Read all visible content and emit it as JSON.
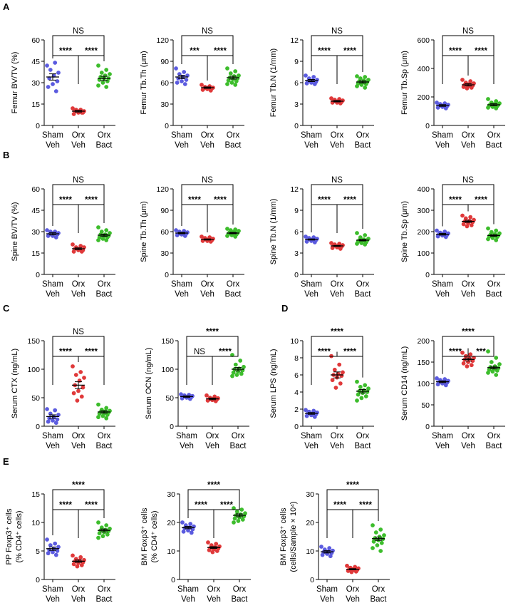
{
  "groups": [
    {
      "line1": "Sham",
      "line2": "Veh"
    },
    {
      "line1": "Orx",
      "line2": "Veh"
    },
    {
      "line1": "Orx",
      "line2": "Bact"
    }
  ],
  "colors": {
    "sham_veh": "#5b5bdf",
    "orx_veh": "#e0393a",
    "orx_bact": "#3dbd2c",
    "axis": "#000000"
  },
  "chart_data": [
    {
      "id": "A1",
      "panel": "A",
      "type": "scatter",
      "ylabel": "Femur BV/TV (%)",
      "ylim": [
        0,
        60
      ],
      "yticks": [
        0,
        15,
        30,
        45,
        60
      ],
      "means": [
        34,
        10,
        33
      ],
      "sems": [
        2.2,
        0.6,
        1.5
      ],
      "points": [
        [
          42,
          44,
          39,
          37,
          35,
          33,
          31,
          29,
          27,
          24
        ],
        [
          12,
          11,
          11,
          10,
          10,
          10,
          9,
          9,
          8,
          9
        ],
        [
          42,
          39,
          37,
          36,
          35,
          34,
          33,
          33,
          32,
          31,
          30,
          28,
          27
        ]
      ],
      "brackets": [
        {
          "from": 0,
          "to": 1,
          "label": "****"
        },
        {
          "from": 1,
          "to": 2,
          "label": "****"
        },
        {
          "from": 0,
          "to": 2,
          "label": "NS"
        }
      ]
    },
    {
      "id": "A2",
      "panel": "A",
      "type": "scatter",
      "ylabel": "Femur Tb.Th (μm)",
      "ylim": [
        0,
        120
      ],
      "yticks": [
        0,
        30,
        60,
        90,
        120
      ],
      "means": [
        68,
        53,
        67
      ],
      "sems": [
        2.5,
        1.0,
        2.0
      ],
      "points": [
        [
          80,
          75,
          72,
          70,
          68,
          66,
          64,
          62,
          60,
          58
        ],
        [
          57,
          55,
          54,
          53,
          53,
          52,
          52,
          51,
          50,
          49
        ],
        [
          80,
          76,
          73,
          70,
          69,
          67,
          66,
          65,
          63,
          62,
          60,
          58,
          57
        ]
      ],
      "brackets": [
        {
          "from": 0,
          "to": 1,
          "label": "***"
        },
        {
          "from": 1,
          "to": 2,
          "label": "****"
        },
        {
          "from": 0,
          "to": 2,
          "label": "NS"
        }
      ]
    },
    {
      "id": "A3",
      "panel": "A",
      "type": "scatter",
      "ylabel": "Femur Tb.N (1/mm)",
      "ylim": [
        0,
        12
      ],
      "yticks": [
        0,
        3,
        6,
        9,
        12
      ],
      "means": [
        6.3,
        3.4,
        6.1
      ],
      "sems": [
        0.15,
        0.1,
        0.15
      ],
      "points": [
        [
          7.0,
          6.8,
          6.6,
          6.4,
          6.3,
          6.2,
          6.1,
          6.0,
          5.9,
          5.8
        ],
        [
          3.8,
          3.7,
          3.6,
          3.5,
          3.4,
          3.4,
          3.3,
          3.2,
          3.2,
          3.1
        ],
        [
          6.9,
          6.8,
          6.6,
          6.4,
          6.3,
          6.2,
          6.1,
          6.0,
          5.9,
          5.8,
          5.7,
          5.5,
          5.3
        ]
      ],
      "brackets": [
        {
          "from": 0,
          "to": 1,
          "label": "****"
        },
        {
          "from": 1,
          "to": 2,
          "label": "****"
        },
        {
          "from": 0,
          "to": 2,
          "label": "NS"
        }
      ]
    },
    {
      "id": "A4",
      "panel": "A",
      "type": "scatter",
      "ylabel": "Femur Tb.Sp (μm)",
      "ylim": [
        0,
        600
      ],
      "yticks": [
        0,
        200,
        400,
        600
      ],
      "means": [
        140,
        285,
        145
      ],
      "sems": [
        6,
        8,
        7
      ],
      "points": [
        [
          160,
          155,
          150,
          145,
          140,
          138,
          135,
          130,
          125,
          120
        ],
        [
          320,
          310,
          300,
          295,
          290,
          285,
          280,
          275,
          270,
          265,
          260
        ],
        [
          185,
          170,
          160,
          155,
          150,
          148,
          145,
          142,
          140,
          135,
          130,
          125,
          120
        ]
      ],
      "brackets": [
        {
          "from": 0,
          "to": 1,
          "label": "****"
        },
        {
          "from": 1,
          "to": 2,
          "label": "****"
        },
        {
          "from": 0,
          "to": 2,
          "label": "NS"
        }
      ]
    },
    {
      "id": "B1",
      "panel": "B",
      "type": "scatter",
      "ylabel": "Spine BV/TV (%)",
      "ylim": [
        0,
        60
      ],
      "yticks": [
        0,
        15,
        30,
        45,
        60
      ],
      "means": [
        28.5,
        18,
        27.5
      ],
      "sems": [
        0.8,
        0.6,
        0.8
      ],
      "points": [
        [
          31,
          30,
          30,
          29,
          29,
          28,
          28,
          27,
          27,
          26
        ],
        [
          21,
          20,
          19,
          19,
          18,
          18,
          17,
          17,
          16,
          16
        ],
        [
          33,
          31,
          30,
          29,
          28,
          28,
          27,
          27,
          26,
          26,
          25,
          24,
          24
        ]
      ],
      "brackets": [
        {
          "from": 0,
          "to": 1,
          "label": "****"
        },
        {
          "from": 1,
          "to": 2,
          "label": "****"
        },
        {
          "from": 0,
          "to": 2,
          "label": "NS"
        }
      ]
    },
    {
      "id": "B2",
      "panel": "B",
      "type": "scatter",
      "ylabel": "Spine Tb.Th (μm)",
      "ylim": [
        0,
        120
      ],
      "yticks": [
        0,
        30,
        60,
        90,
        120
      ],
      "means": [
        58,
        49,
        58
      ],
      "sems": [
        1.0,
        0.8,
        1.0
      ],
      "points": [
        [
          62,
          61,
          60,
          59,
          58,
          57,
          57,
          56,
          55,
          54
        ],
        [
          53,
          52,
          51,
          50,
          49,
          49,
          48,
          47,
          47,
          46
        ],
        [
          64,
          63,
          62,
          61,
          60,
          59,
          58,
          58,
          57,
          56,
          55,
          54,
          53
        ]
      ],
      "brackets": [
        {
          "from": 0,
          "to": 1,
          "label": "****"
        },
        {
          "from": 1,
          "to": 2,
          "label": "****"
        },
        {
          "from": 0,
          "to": 2,
          "label": "NS"
        }
      ]
    },
    {
      "id": "B3",
      "panel": "B",
      "type": "scatter",
      "ylabel": "Spine Tb.N (1/mm)",
      "ylim": [
        0,
        12
      ],
      "yticks": [
        0,
        3,
        6,
        9,
        12
      ],
      "means": [
        4.9,
        4.0,
        4.8
      ],
      "sems": [
        0.08,
        0.07,
        0.1
      ],
      "points": [
        [
          5.3,
          5.2,
          5.1,
          5.0,
          4.9,
          4.9,
          4.8,
          4.7,
          4.6,
          4.5
        ],
        [
          4.4,
          4.3,
          4.2,
          4.1,
          4.0,
          4.0,
          3.9,
          3.8,
          3.7,
          3.6
        ],
        [
          5.8,
          5.5,
          5.2,
          5.0,
          4.9,
          4.8,
          4.8,
          4.7,
          4.6,
          4.5,
          4.4,
          4.3,
          4.2
        ]
      ],
      "brackets": [
        {
          "from": 0,
          "to": 1,
          "label": "****"
        },
        {
          "from": 1,
          "to": 2,
          "label": "****"
        },
        {
          "from": 0,
          "to": 2,
          "label": "NS"
        }
      ]
    },
    {
      "id": "B4",
      "panel": "B",
      "type": "scatter",
      "ylabel": "Spine Tb.Sp (μm)",
      "ylim": [
        0,
        400
      ],
      "yticks": [
        0,
        100,
        200,
        300,
        400
      ],
      "means": [
        188,
        248,
        182
      ],
      "sems": [
        4,
        5,
        4
      ],
      "points": [
        [
          205,
          200,
          195,
          192,
          190,
          188,
          185,
          182,
          178,
          175
        ],
        [
          275,
          268,
          262,
          255,
          250,
          248,
          245,
          240,
          235,
          230,
          225
        ],
        [
          215,
          205,
          198,
          192,
          188,
          185,
          182,
          180,
          178,
          175,
          170,
          165,
          160
        ]
      ],
      "brackets": [
        {
          "from": 0,
          "to": 1,
          "label": "****"
        },
        {
          "from": 1,
          "to": 2,
          "label": "****"
        },
        {
          "from": 0,
          "to": 2,
          "label": "NS"
        }
      ]
    },
    {
      "id": "C1",
      "panel": "C",
      "type": "scatter",
      "ylabel": "Serum CTX (ng/mL)",
      "ylim": [
        0,
        150
      ],
      "yticks": [
        0,
        50,
        100,
        150
      ],
      "means": [
        17,
        72,
        25
      ],
      "sems": [
        3,
        6,
        2
      ],
      "points": [
        [
          30,
          28,
          22,
          20,
          16,
          14,
          12,
          10,
          8,
          6
        ],
        [
          105,
          95,
          90,
          85,
          80,
          72,
          68,
          62,
          58,
          52,
          45
        ],
        [
          38,
          32,
          29,
          27,
          26,
          25,
          24,
          23,
          22,
          20,
          18,
          16,
          14
        ]
      ],
      "brackets": [
        {
          "from": 0,
          "to": 1,
          "label": "****"
        },
        {
          "from": 1,
          "to": 2,
          "label": "****"
        },
        {
          "from": 0,
          "to": 2,
          "label": "NS"
        }
      ]
    },
    {
      "id": "C2",
      "panel": "C",
      "type": "scatter",
      "ylabel": "Serum OCN (ng/mL)",
      "ylim": [
        0,
        150
      ],
      "yticks": [
        0,
        50,
        100,
        150
      ],
      "means": [
        52,
        48,
        100
      ],
      "sems": [
        1.2,
        1.5,
        3
      ],
      "points": [
        [
          56,
          55,
          54,
          53,
          52,
          52,
          51,
          50,
          49,
          48
        ],
        [
          54,
          52,
          50,
          49,
          48,
          47,
          47,
          46,
          45,
          44
        ],
        [
          125,
          115,
          108,
          104,
          101,
          100,
          98,
          96,
          94,
          92,
          90,
          88
        ]
      ],
      "brackets": [
        {
          "from": 0,
          "to": 1,
          "label": "NS"
        },
        {
          "from": 1,
          "to": 2,
          "label": "****"
        },
        {
          "from": 0,
          "to": 2,
          "label": "****"
        }
      ]
    },
    {
      "id": "D1",
      "panel": "D",
      "type": "scatter",
      "ylabel": "Serum LPS (ng/mL)",
      "ylim": [
        0,
        10
      ],
      "yticks": [
        0,
        2,
        4,
        6,
        8,
        10
      ],
      "means": [
        1.5,
        6.0,
        4.1
      ],
      "sems": [
        0.1,
        0.35,
        0.2
      ],
      "points": [
        [
          1.9,
          1.8,
          1.7,
          1.6,
          1.5,
          1.5,
          1.4,
          1.3,
          1.2,
          1.1
        ],
        [
          8.2,
          7.2,
          6.6,
          6.3,
          6.1,
          6.0,
          5.9,
          5.7,
          5.4,
          5.0,
          4.5
        ],
        [
          5.2,
          4.8,
          4.6,
          4.4,
          4.2,
          4.1,
          4.0,
          3.9,
          3.7,
          3.5,
          3.3,
          3.0
        ]
      ],
      "brackets": [
        {
          "from": 0,
          "to": 1,
          "label": "****"
        },
        {
          "from": 1,
          "to": 2,
          "label": "****"
        },
        {
          "from": 0,
          "to": 2,
          "label": "****"
        }
      ]
    },
    {
      "id": "D2",
      "panel": "D",
      "type": "scatter",
      "ylabel": "Serum CD14 (ng/mL)",
      "ylim": [
        0,
        200
      ],
      "yticks": [
        0,
        50,
        100,
        150,
        200
      ],
      "means": [
        104,
        156,
        137
      ],
      "sems": [
        2,
        3.5,
        3
      ],
      "points": [
        [
          112,
          110,
          108,
          106,
          104,
          103,
          102,
          100,
          98,
          96
        ],
        [
          172,
          168,
          164,
          160,
          158,
          156,
          153,
          150,
          147,
          143,
          140
        ],
        [
          175,
          160,
          150,
          145,
          140,
          138,
          136,
          134,
          132,
          130,
          128,
          125,
          120
        ]
      ],
      "brackets": [
        {
          "from": 0,
          "to": 1,
          "label": "****"
        },
        {
          "from": 1,
          "to": 2,
          "label": "***"
        },
        {
          "from": 0,
          "to": 2,
          "label": "****"
        }
      ]
    },
    {
      "id": "E1",
      "panel": "E",
      "type": "scatter",
      "ylabel_line1": "PP Foxp3⁺ cells",
      "ylabel_line2": "(% CD4⁺ cells)",
      "ylim": [
        0,
        15
      ],
      "yticks": [
        0,
        5,
        10,
        15
      ],
      "means": [
        5.4,
        3.2,
        8.6
      ],
      "sems": [
        0.3,
        0.2,
        0.25
      ],
      "points": [
        [
          7.0,
          6.3,
          6.0,
          5.7,
          5.4,
          5.2,
          5.0,
          4.8,
          4.6,
          4.3
        ],
        [
          4.2,
          3.9,
          3.6,
          3.4,
          3.3,
          3.2,
          3.0,
          2.9,
          2.7,
          2.5,
          2.3
        ],
        [
          10.0,
          9.5,
          9.1,
          8.9,
          8.7,
          8.6,
          8.5,
          8.3,
          8.1,
          7.9,
          7.6,
          7.3
        ]
      ],
      "brackets": [
        {
          "from": 0,
          "to": 1,
          "label": "****"
        },
        {
          "from": 1,
          "to": 2,
          "label": "****"
        },
        {
          "from": 0,
          "to": 2,
          "label": "****"
        }
      ]
    },
    {
      "id": "E2",
      "panel": "E",
      "type": "scatter",
      "ylabel_line1": "BM Foxp3⁺ cells",
      "ylabel_line2": "(% CD4⁺ cells)",
      "ylim": [
        0,
        30
      ],
      "yticks": [
        0,
        10,
        20,
        30
      ],
      "means": [
        18.2,
        11.2,
        22.5
      ],
      "sems": [
        0.4,
        0.3,
        0.5
      ],
      "points": [
        [
          20,
          19.5,
          19,
          18.6,
          18.2,
          18,
          17.6,
          17.2,
          16.8,
          16.4
        ],
        [
          13,
          12.5,
          12,
          11.6,
          11.3,
          11.1,
          10.9,
          10.6,
          10.3,
          10,
          9.6
        ],
        [
          25,
          24.5,
          23.8,
          23.2,
          22.8,
          22.5,
          22.2,
          21.8,
          21.4,
          21,
          20.5,
          20
        ]
      ],
      "brackets": [
        {
          "from": 0,
          "to": 1,
          "label": "****"
        },
        {
          "from": 1,
          "to": 2,
          "label": "****"
        },
        {
          "from": 0,
          "to": 2,
          "label": "****"
        }
      ]
    },
    {
      "id": "E3",
      "panel": "E",
      "type": "scatter",
      "ylabel_line1": "BM Foxp3⁺ cells",
      "ylabel_line2": "(cells/Sample × 10⁴)",
      "ylim": [
        0,
        30
      ],
      "yticks": [
        0,
        10,
        20,
        30
      ],
      "means": [
        9.7,
        3.6,
        14.3
      ],
      "sems": [
        0.4,
        0.2,
        0.6
      ],
      "points": [
        [
          11.5,
          11,
          10.5,
          10.1,
          9.8,
          9.6,
          9.3,
          9,
          8.6,
          8.2
        ],
        [
          4.8,
          4.4,
          4.1,
          3.9,
          3.7,
          3.6,
          3.4,
          3.2,
          3,
          2.8,
          2.6
        ],
        [
          19,
          17.5,
          16.5,
          15.5,
          15,
          14.5,
          14.2,
          13.8,
          13.3,
          12.8,
          12,
          11,
          10
        ]
      ],
      "brackets": [
        {
          "from": 0,
          "to": 1,
          "label": "****"
        },
        {
          "from": 1,
          "to": 2,
          "label": "****"
        },
        {
          "from": 0,
          "to": 2,
          "label": "****"
        }
      ]
    }
  ],
  "panel_labels": [
    {
      "id": "A",
      "text": "A"
    },
    {
      "id": "B",
      "text": "B"
    },
    {
      "id": "C",
      "text": "C"
    },
    {
      "id": "D",
      "text": "D"
    },
    {
      "id": "E",
      "text": "E"
    }
  ]
}
